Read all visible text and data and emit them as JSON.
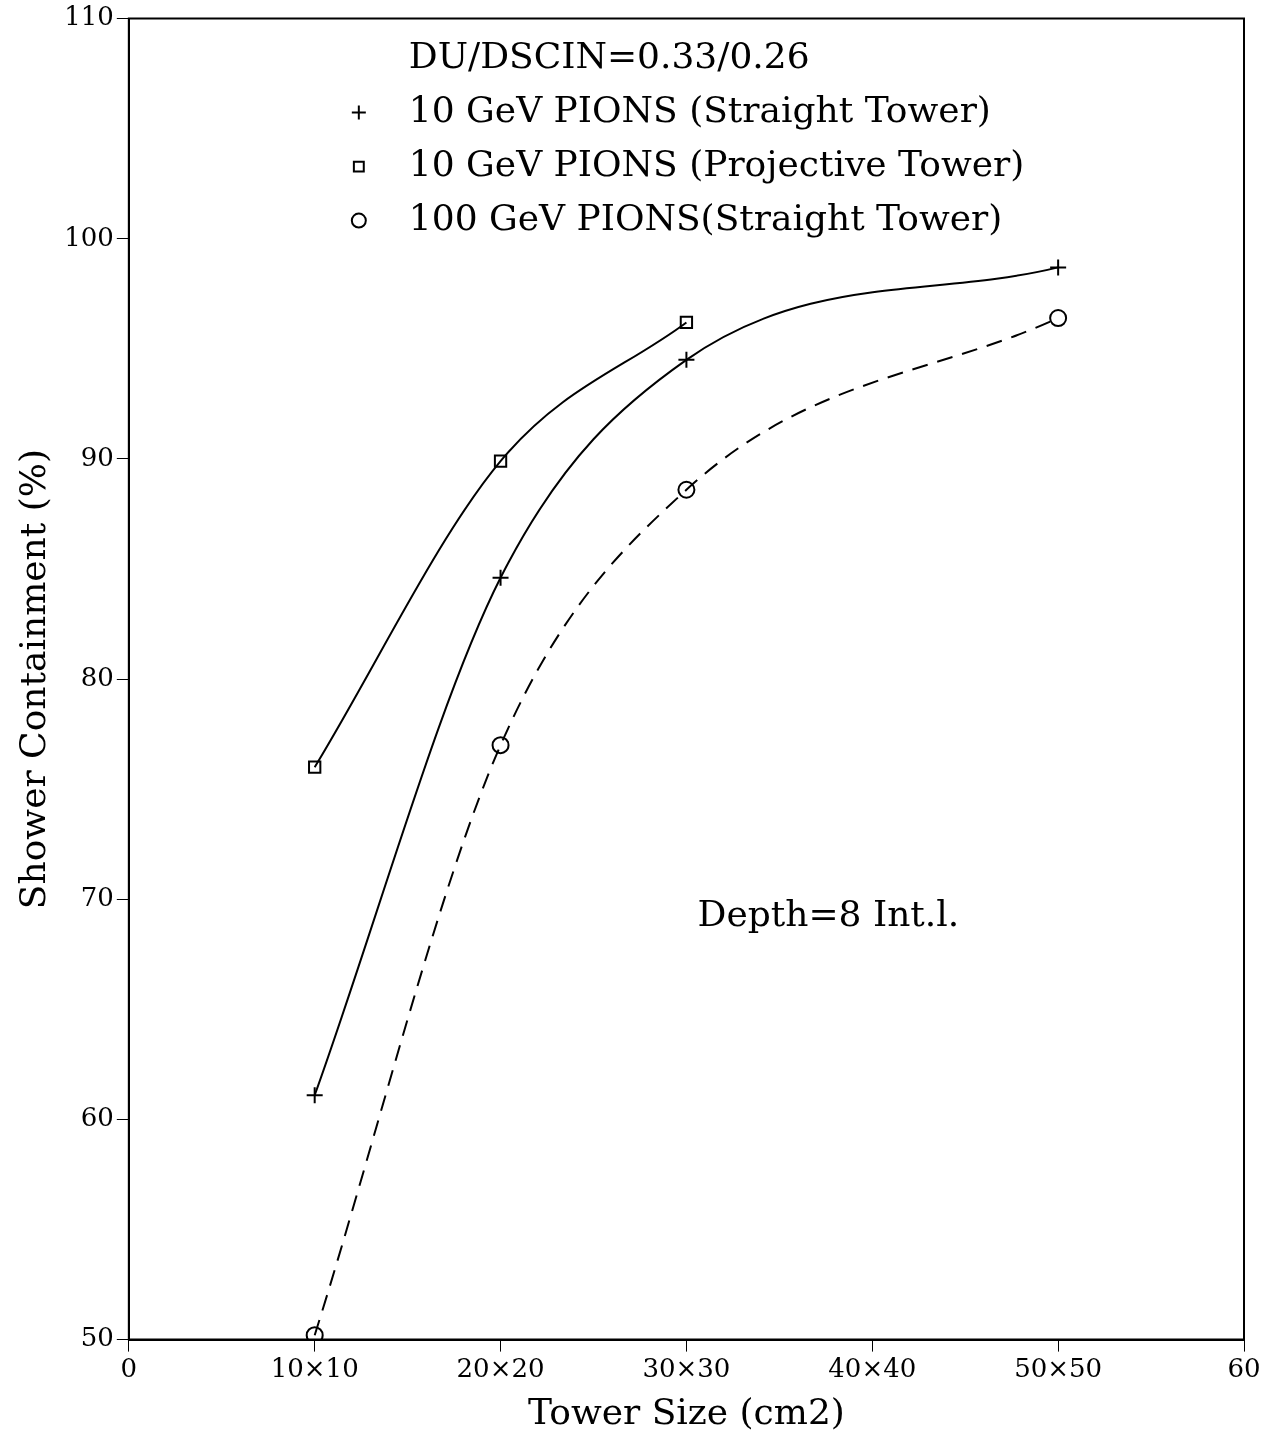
{
  "chart_data": {
    "type": "line",
    "xlabel": "Tower Size (cm2)",
    "ylabel": "Shower Containment (%)",
    "legend_title": "DU/DSCIN=0.33/0.26",
    "xlim": [
      0,
      60
    ],
    "xticks": [
      0,
      {
        "value": 10,
        "label": "10×10"
      },
      {
        "value": 20,
        "label": "20×20"
      },
      {
        "value": 30,
        "label": "30×30"
      },
      {
        "value": 40,
        "label": "40×40"
      },
      {
        "value": 50,
        "label": "50×50"
      },
      60
    ],
    "ylim": [
      50,
      110
    ],
    "yticks": [
      50,
      60,
      70,
      80,
      90,
      100,
      110
    ],
    "grid": false,
    "legend": "top right",
    "series": [
      {
        "name": "10 GeV PIONS (Straight Tower)",
        "color": "#000000",
        "marker": "cross",
        "line_style": "solid",
        "x": [
          10,
          20,
          30,
          50
        ],
        "values": [
          61.1,
          84.6,
          94.5,
          98.7
        ]
      },
      {
        "name": "10 GeV PIONS (Projective Tower)",
        "color": "#000000",
        "marker": "square",
        "line_style": "solid",
        "x": [
          10,
          20,
          30
        ],
        "values": [
          76.0,
          89.9,
          96.2
        ]
      },
      {
        "name": "100 GeV PIONS(Straight Tower)",
        "color": "#000000",
        "marker": "circle",
        "line_style": "dashed",
        "x": [
          10,
          20,
          30,
          50
        ],
        "values": [
          50.2,
          77.0,
          88.6,
          96.4
        ]
      }
    ],
    "annotations": [
      "Depth=8 Int.l."
    ]
  }
}
